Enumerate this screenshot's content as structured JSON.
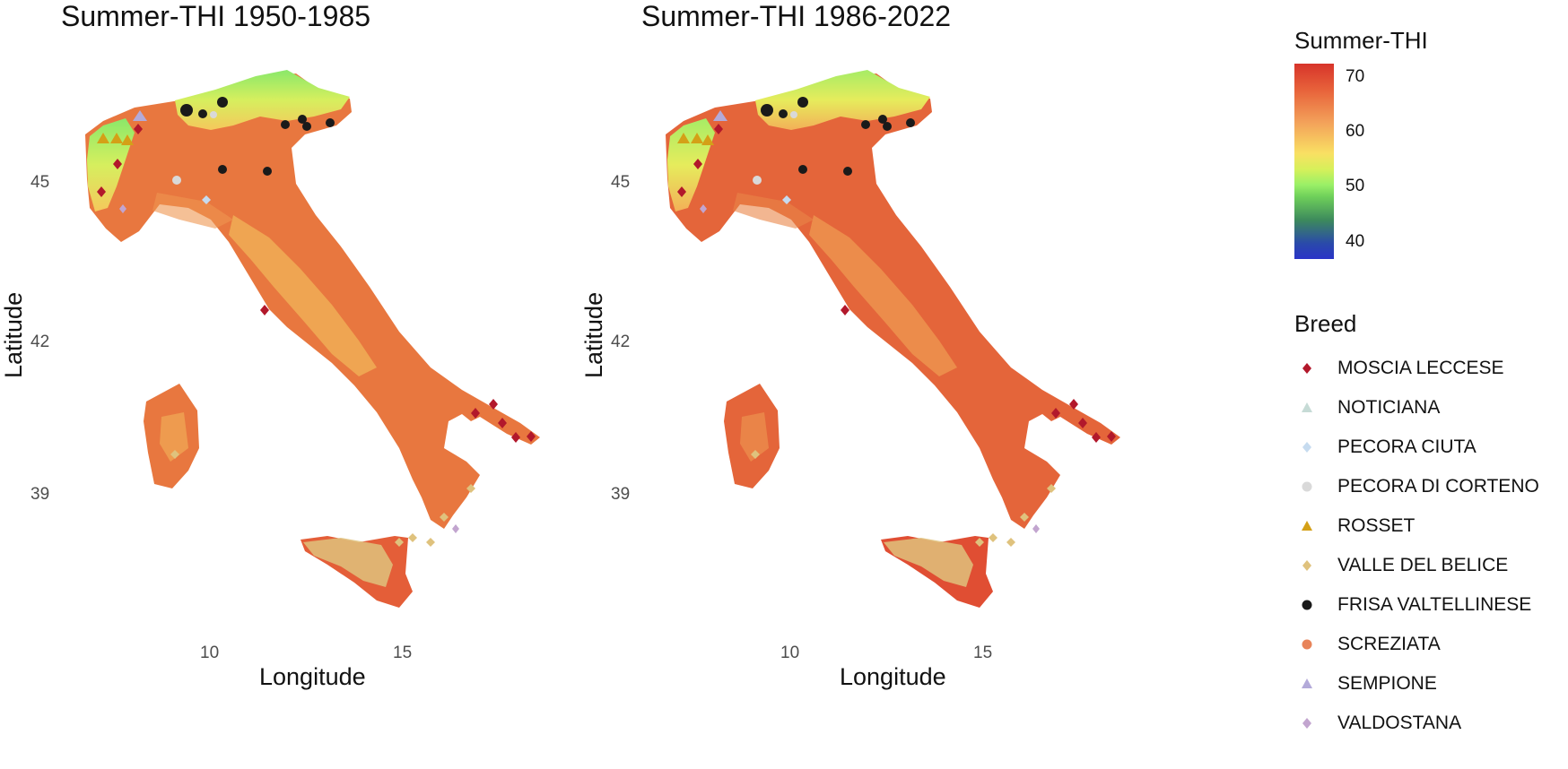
{
  "panels": [
    {
      "title": "Summer-THI 1950-1985",
      "x_ticks": [
        "10",
        "15"
      ],
      "y_ticks": [
        "45",
        "42",
        "39"
      ]
    },
    {
      "title": "Summer-THI 1986-2022",
      "x_ticks": [
        "10",
        "15"
      ],
      "y_ticks": [
        "45",
        "42",
        "39"
      ]
    }
  ],
  "axes": {
    "xlabel": "Longitude",
    "ylabel": "Latitude"
  },
  "colorbar": {
    "title": "Summer-THI",
    "ticks": [
      "70",
      "60",
      "50",
      "40"
    ]
  },
  "legend": {
    "title": "Breed",
    "items": [
      {
        "label": "MOSCIA LECCESE",
        "shape": "diamond",
        "color": "#b2182b"
      },
      {
        "label": "NOTICIANA",
        "shape": "triangle",
        "color": "#c6dbd6"
      },
      {
        "label": "PECORA CIUTA",
        "shape": "diamond",
        "color": "#c6dbef"
      },
      {
        "label": "PECORA DI CORTENO",
        "shape": "circle",
        "color": "#d9d9d9"
      },
      {
        "label": "ROSSET",
        "shape": "triangle",
        "color": "#d4a017"
      },
      {
        "label": "VALLE DEL BELICE",
        "shape": "diamond",
        "color": "#dfc27d"
      },
      {
        "label": "FRISA VALTELLINESE",
        "shape": "circle",
        "color": "#1a1a1a"
      },
      {
        "label": "SCREZIATA",
        "shape": "circle",
        "color": "#e8845a"
      },
      {
        "label": "SEMPIONE",
        "shape": "triangle",
        "color": "#b3aad9"
      },
      {
        "label": "VALDOSTANA",
        "shape": "diamond",
        "color": "#c2a5cf"
      }
    ]
  }
}
